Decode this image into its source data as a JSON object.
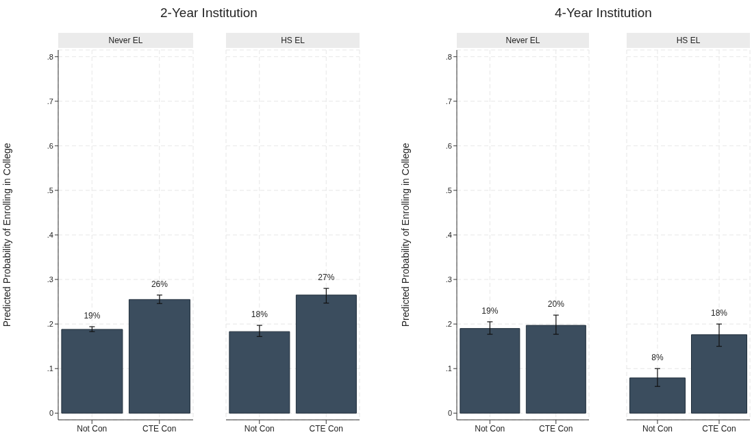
{
  "chart_data": [
    {
      "type": "bar",
      "title": "2-Year Institution",
      "subtitle": "Never EL",
      "ylabel": "Predicted Probability of Enrolling in College",
      "categories": [
        "Not Con",
        "CTE Con"
      ],
      "values": [
        0.188,
        0.255
      ],
      "errors": [
        [
          0.183,
          0.194
        ],
        [
          0.246,
          0.265
        ]
      ],
      "value_labels": [
        "19%",
        "26%"
      ],
      "color": "#3b4d5e",
      "ylim": [
        -0.015,
        0.815
      ],
      "yticks": [
        {
          "value": 0,
          "label": "0"
        },
        {
          "value": 0.1,
          "label": ".1"
        },
        {
          "value": 0.2,
          "label": ".2"
        },
        {
          "value": 0.3,
          "label": ".3"
        },
        {
          "value": 0.4,
          "label": ".4"
        },
        {
          "value": 0.5,
          "label": ".5"
        },
        {
          "value": 0.6,
          "label": ".6"
        },
        {
          "value": 0.7,
          "label": ".7"
        },
        {
          "value": 0.8,
          "label": ".8"
        }
      ],
      "grid": true
    },
    {
      "type": "bar",
      "subtitle": "HS EL",
      "categories": [
        "Not Con",
        "CTE Con"
      ],
      "values": [
        0.183,
        0.265
      ],
      "errors": [
        [
          0.172,
          0.197
        ],
        [
          0.247,
          0.28
        ]
      ],
      "value_labels": [
        "18%",
        "27%"
      ],
      "color": "#3b4d5e",
      "ylim": [
        -0.015,
        0.815
      ],
      "yticks": [
        {
          "value": 0,
          "label": null
        },
        {
          "value": 0.1,
          "label": null
        },
        {
          "value": 0.2,
          "label": null
        },
        {
          "value": 0.3,
          "label": null
        },
        {
          "value": 0.4,
          "label": null
        },
        {
          "value": 0.5,
          "label": null
        },
        {
          "value": 0.6,
          "label": null
        },
        {
          "value": 0.7,
          "label": null
        },
        {
          "value": 0.8,
          "label": null
        }
      ],
      "grid": true,
      "tick_labels": "x"
    },
    {
      "type": "bar",
      "title": "4-Year Institution",
      "subtitle": "Never EL",
      "ylabel": "Predicted Probability of Enrolling in College",
      "categories": [
        "Not Con",
        "CTE Con"
      ],
      "values": [
        0.19,
        0.197
      ],
      "errors": [
        [
          0.177,
          0.205
        ],
        [
          0.177,
          0.22
        ]
      ],
      "value_labels": [
        "19%",
        "20%"
      ],
      "color": "#3b4d5e",
      "ylim": [
        -0.015,
        0.815
      ],
      "yticks": [
        {
          "value": 0,
          "label": "0"
        },
        {
          "value": 0.1,
          "label": ".1"
        },
        {
          "value": 0.2,
          "label": ".2"
        },
        {
          "value": 0.3,
          "label": ".3"
        },
        {
          "value": 0.4,
          "label": ".4"
        },
        {
          "value": 0.5,
          "label": ".5"
        },
        {
          "value": 0.6,
          "label": ".6"
        },
        {
          "value": 0.7,
          "label": ".7"
        },
        {
          "value": 0.8,
          "label": ".8"
        }
      ],
      "grid": true
    },
    {
      "type": "bar",
      "subtitle": "HS EL",
      "categories": [
        "Not Con",
        "CTE Con"
      ],
      "values": [
        0.079,
        0.176
      ],
      "errors": [
        [
          0.06,
          0.1
        ],
        [
          0.15,
          0.2
        ]
      ],
      "value_labels": [
        "8%",
        "18%"
      ],
      "color": "#3b4d5e",
      "ylim": [
        -0.015,
        0.815
      ],
      "yticks": [
        {
          "value": 0,
          "label": null
        },
        {
          "value": 0.1,
          "label": null
        },
        {
          "value": 0.2,
          "label": null
        },
        {
          "value": 0.3,
          "label": null
        },
        {
          "value": 0.4,
          "label": null
        },
        {
          "value": 0.5,
          "label": null
        },
        {
          "value": 0.6,
          "label": null
        },
        {
          "value": 0.7,
          "label": null
        },
        {
          "value": 0.8,
          "label": null
        }
      ],
      "grid": true,
      "tick_labels": "x"
    }
  ]
}
